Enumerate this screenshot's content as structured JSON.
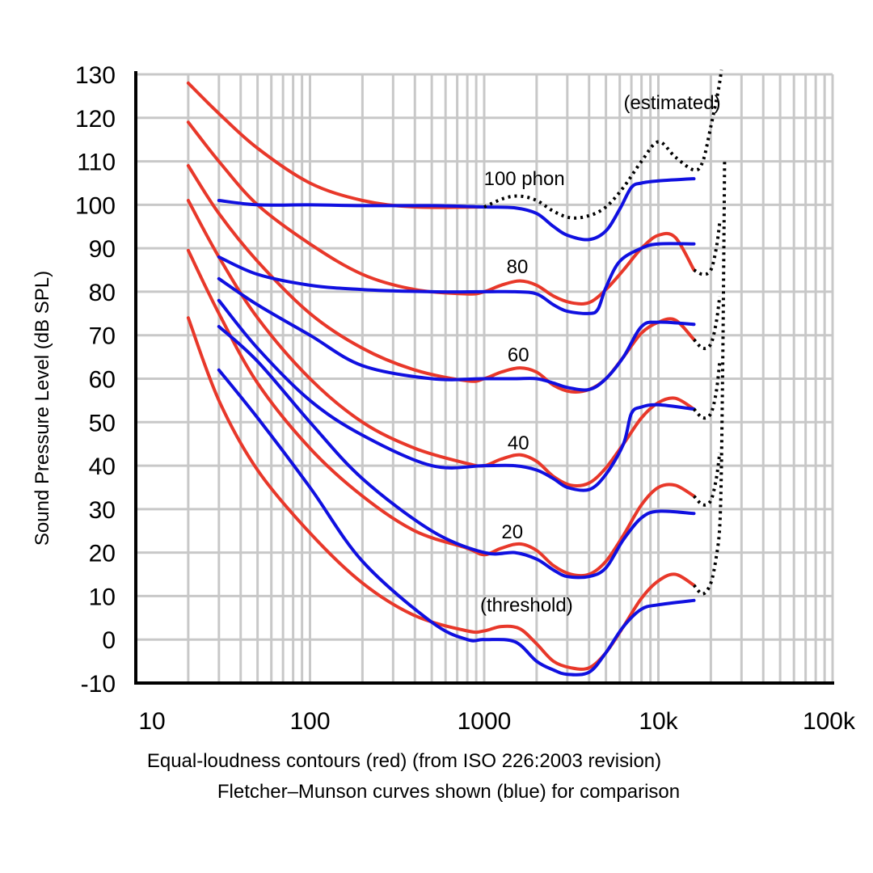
{
  "chart_data": {
    "type": "line",
    "xscale": "log",
    "xlim": [
      10,
      100000
    ],
    "ylim": [
      -10,
      130
    ],
    "grid": true,
    "ylabel": "Sound Pressure Level (dB SPL)",
    "caption_line1": "Equal-loudness contours (red) (from ISO 226:2003 revision)",
    "caption_line2": "Fletcher–Munson curves shown (blue) for comparison",
    "x_tick_labels": [
      {
        "x": 10,
        "label": "10"
      },
      {
        "x": 100,
        "label": "100"
      },
      {
        "x": 1000,
        "label": "1000"
      },
      {
        "x": 10000,
        "label": "10k"
      },
      {
        "x": 100000,
        "label": "100k"
      }
    ],
    "y_tick_labels": [
      "-10",
      "0",
      "10",
      "20",
      "30",
      "40",
      "50",
      "60",
      "70",
      "80",
      "90",
      "100",
      "110",
      "120",
      "130"
    ],
    "annotations": [
      {
        "text": "(estimated)",
        "x": 12000,
        "y": 122
      },
      {
        "text": "100 phon",
        "x": 1700,
        "y": 104.5
      },
      {
        "text": "80",
        "x": 1550,
        "y": 84.3
      },
      {
        "text": "60",
        "x": 1570,
        "y": 64
      },
      {
        "text": "40",
        "x": 1570,
        "y": 43.7
      },
      {
        "text": "20",
        "x": 1450,
        "y": 23.3
      },
      {
        "text": "(threshold)",
        "x": 1750,
        "y": 6.5
      }
    ],
    "colors": {
      "iso": "#e8382a",
      "fletcher": "#1010e0",
      "estimated": "#000000",
      "grid": "#c8c8c8",
      "axis": "#000000"
    },
    "series": [
      {
        "group": "iso",
        "phon": 100,
        "points": [
          [
            20,
            128
          ],
          [
            30,
            121
          ],
          [
            50,
            113
          ],
          [
            100,
            105
          ],
          [
            200,
            101
          ],
          [
            400,
            99.5
          ],
          [
            1000,
            99.5
          ]
        ]
      },
      {
        "group": "iso",
        "phon": 80,
        "points": [
          [
            20,
            119
          ],
          [
            30,
            110
          ],
          [
            50,
            100
          ],
          [
            100,
            91
          ],
          [
            200,
            84
          ],
          [
            400,
            80.5
          ],
          [
            800,
            79.5
          ],
          [
            1000,
            80
          ],
          [
            1250,
            81.5
          ],
          [
            1600,
            82.5
          ],
          [
            2000,
            81.5
          ],
          [
            2500,
            79
          ],
          [
            3150,
            77.5
          ],
          [
            4000,
            77.5
          ],
          [
            5000,
            80.5
          ],
          [
            6300,
            85
          ],
          [
            8000,
            90
          ],
          [
            10000,
            93
          ],
          [
            12500,
            92.5
          ],
          [
            16000,
            85
          ]
        ]
      },
      {
        "group": "iso",
        "phon": 60,
        "points": [
          [
            20,
            109
          ],
          [
            30,
            98
          ],
          [
            50,
            87
          ],
          [
            100,
            75
          ],
          [
            200,
            67
          ],
          [
            400,
            62
          ],
          [
            800,
            59.5
          ],
          [
            1000,
            60
          ],
          [
            1250,
            61.5
          ],
          [
            1600,
            62.5
          ],
          [
            2000,
            61.5
          ],
          [
            2500,
            58.5
          ],
          [
            3150,
            57
          ],
          [
            4000,
            57.5
          ],
          [
            5000,
            60
          ],
          [
            6300,
            65
          ],
          [
            8000,
            70.5
          ],
          [
            10000,
            73
          ],
          [
            12500,
            73.5
          ],
          [
            16000,
            69
          ]
        ]
      },
      {
        "group": "iso",
        "phon": 40,
        "points": [
          [
            20,
            101
          ],
          [
            30,
            88
          ],
          [
            50,
            74
          ],
          [
            100,
            60
          ],
          [
            200,
            50
          ],
          [
            400,
            44
          ],
          [
            800,
            40.5
          ],
          [
            1000,
            40
          ],
          [
            1250,
            41.5
          ],
          [
            1600,
            42.5
          ],
          [
            2000,
            41
          ],
          [
            2500,
            37.5
          ],
          [
            3150,
            35.5
          ],
          [
            4000,
            36
          ],
          [
            5000,
            39.5
          ],
          [
            6300,
            45
          ],
          [
            8000,
            51
          ],
          [
            10000,
            54.5
          ],
          [
            12500,
            55.5
          ],
          [
            16000,
            53
          ]
        ]
      },
      {
        "group": "iso",
        "phon": 20,
        "points": [
          [
            20,
            89.5
          ],
          [
            30,
            75
          ],
          [
            50,
            59
          ],
          [
            100,
            44
          ],
          [
            200,
            33
          ],
          [
            400,
            25
          ],
          [
            800,
            21
          ],
          [
            1000,
            19.5
          ],
          [
            1250,
            21
          ],
          [
            1600,
            22
          ],
          [
            2000,
            20.5
          ],
          [
            2500,
            17
          ],
          [
            3150,
            15
          ],
          [
            4000,
            15
          ],
          [
            5000,
            18
          ],
          [
            6300,
            24
          ],
          [
            8000,
            31
          ],
          [
            10000,
            35
          ],
          [
            12500,
            35.5
          ],
          [
            16000,
            33
          ]
        ]
      },
      {
        "group": "iso",
        "phon": 0,
        "points": [
          [
            20,
            74
          ],
          [
            30,
            55
          ],
          [
            50,
            39
          ],
          [
            100,
            24.5
          ],
          [
            200,
            13
          ],
          [
            400,
            5.5
          ],
          [
            800,
            2
          ],
          [
            1000,
            2
          ],
          [
            1250,
            3
          ],
          [
            1600,
            2.5
          ],
          [
            2000,
            -1
          ],
          [
            2500,
            -5
          ],
          [
            3150,
            -6.5
          ],
          [
            4000,
            -6.5
          ],
          [
            5000,
            -3
          ],
          [
            6300,
            3
          ],
          [
            8000,
            9.5
          ],
          [
            10000,
            13.5
          ],
          [
            12500,
            15
          ],
          [
            16000,
            12.5
          ]
        ]
      },
      {
        "group": "fletcher",
        "phon": 100,
        "points": [
          [
            30,
            101
          ],
          [
            50,
            100
          ],
          [
            100,
            100
          ],
          [
            200,
            99.8
          ],
          [
            500,
            99.8
          ],
          [
            1000,
            99.5
          ],
          [
            1500,
            99.3
          ],
          [
            2000,
            98
          ],
          [
            2500,
            95
          ],
          [
            3000,
            93
          ],
          [
            4000,
            92
          ],
          [
            5000,
            94
          ],
          [
            6000,
            99
          ],
          [
            7000,
            104
          ],
          [
            8000,
            105
          ],
          [
            10000,
            105.5
          ],
          [
            16000,
            106
          ]
        ]
      },
      {
        "group": "fletcher",
        "phon": 80,
        "points": [
          [
            30,
            88
          ],
          [
            50,
            84
          ],
          [
            100,
            81.5
          ],
          [
            200,
            80.5
          ],
          [
            500,
            80
          ],
          [
            1000,
            80
          ],
          [
            1500,
            80
          ],
          [
            2000,
            79.5
          ],
          [
            2500,
            77
          ],
          [
            3000,
            75.5
          ],
          [
            4000,
            75
          ],
          [
            4500,
            76
          ],
          [
            5000,
            81
          ],
          [
            6000,
            87
          ],
          [
            8000,
            90
          ],
          [
            10000,
            91
          ],
          [
            16000,
            91
          ]
        ]
      },
      {
        "group": "fletcher",
        "phon": 60,
        "points": [
          [
            30,
            83
          ],
          [
            50,
            77
          ],
          [
            100,
            70
          ],
          [
            200,
            63
          ],
          [
            500,
            60
          ],
          [
            1000,
            60
          ],
          [
            1500,
            60
          ],
          [
            2000,
            60
          ],
          [
            2500,
            59
          ],
          [
            3000,
            58
          ],
          [
            4000,
            57.5
          ],
          [
            5000,
            60
          ],
          [
            6300,
            65
          ],
          [
            8000,
            72
          ],
          [
            10000,
            73
          ],
          [
            16000,
            72.5
          ]
        ]
      },
      {
        "group": "fletcher",
        "phon": 40,
        "points": [
          [
            30,
            78
          ],
          [
            50,
            67
          ],
          [
            100,
            55
          ],
          [
            200,
            47
          ],
          [
            500,
            40
          ],
          [
            1000,
            40
          ],
          [
            1500,
            40
          ],
          [
            2000,
            39
          ],
          [
            2500,
            37
          ],
          [
            3000,
            35
          ],
          [
            4000,
            34.5
          ],
          [
            5000,
            38
          ],
          [
            6300,
            45
          ],
          [
            7000,
            52
          ],
          [
            8000,
            53.5
          ],
          [
            10000,
            54
          ],
          [
            16000,
            53
          ]
        ]
      },
      {
        "group": "fletcher",
        "phon": 20,
        "points": [
          [
            30,
            72
          ],
          [
            50,
            64
          ],
          [
            100,
            50
          ],
          [
            200,
            37
          ],
          [
            500,
            25
          ],
          [
            1000,
            20
          ],
          [
            1500,
            20
          ],
          [
            2000,
            18.5
          ],
          [
            2500,
            16
          ],
          [
            3000,
            14.5
          ],
          [
            4000,
            14.5
          ],
          [
            5000,
            16.5
          ],
          [
            6300,
            23
          ],
          [
            8000,
            28
          ],
          [
            10000,
            29.5
          ],
          [
            16000,
            29
          ]
        ]
      },
      {
        "group": "fletcher",
        "phon": 0,
        "points": [
          [
            30,
            62
          ],
          [
            50,
            51
          ],
          [
            100,
            35
          ],
          [
            200,
            18
          ],
          [
            500,
            4
          ],
          [
            800,
            0
          ],
          [
            1000,
            0
          ],
          [
            1500,
            -0.5
          ],
          [
            2000,
            -5
          ],
          [
            2500,
            -7
          ],
          [
            3000,
            -8
          ],
          [
            4000,
            -7.5
          ],
          [
            5000,
            -3
          ],
          [
            6300,
            3
          ],
          [
            8000,
            7
          ],
          [
            10000,
            8
          ],
          [
            16000,
            9
          ]
        ]
      },
      {
        "group": "estimated",
        "phon": 100,
        "points": [
          [
            1000,
            99.5
          ],
          [
            1300,
            101.5
          ],
          [
            1600,
            102
          ],
          [
            2000,
            101
          ],
          [
            2500,
            98.5
          ],
          [
            3150,
            97
          ],
          [
            4000,
            97.5
          ],
          [
            5000,
            99.5
          ],
          [
            6300,
            104
          ],
          [
            8000,
            110
          ],
          [
            10000,
            114.5
          ],
          [
            12500,
            111
          ],
          [
            16000,
            108
          ],
          [
            18000,
            110
          ],
          [
            20000,
            118
          ],
          [
            22000,
            126
          ],
          [
            23000,
            131
          ]
        ]
      },
      {
        "group": "estimated",
        "phon": 80,
        "points": [
          [
            16000,
            85
          ],
          [
            18000,
            84
          ],
          [
            20000,
            85
          ],
          [
            21500,
            90
          ],
          [
            22500,
            96
          ]
        ]
      },
      {
        "group": "estimated",
        "phon": 60,
        "points": [
          [
            16000,
            69
          ],
          [
            18000,
            67
          ],
          [
            20000,
            68
          ],
          [
            21500,
            73
          ],
          [
            22500,
            79
          ]
        ]
      },
      {
        "group": "estimated",
        "phon": 40,
        "points": [
          [
            16000,
            53
          ],
          [
            18000,
            51
          ],
          [
            20000,
            52
          ],
          [
            21500,
            57
          ],
          [
            22500,
            64
          ]
        ]
      },
      {
        "group": "estimated",
        "phon": 20,
        "points": [
          [
            16000,
            33
          ],
          [
            18000,
            31
          ],
          [
            20000,
            32
          ],
          [
            21500,
            37
          ],
          [
            22500,
            43
          ]
        ]
      },
      {
        "group": "estimated",
        "phon": 0,
        "points": [
          [
            16000,
            12.5
          ],
          [
            18000,
            10.5
          ],
          [
            20000,
            13
          ],
          [
            21500,
            19
          ],
          [
            22500,
            26
          ],
          [
            23000,
            40
          ],
          [
            23500,
            70
          ],
          [
            24000,
            110
          ]
        ]
      }
    ]
  }
}
